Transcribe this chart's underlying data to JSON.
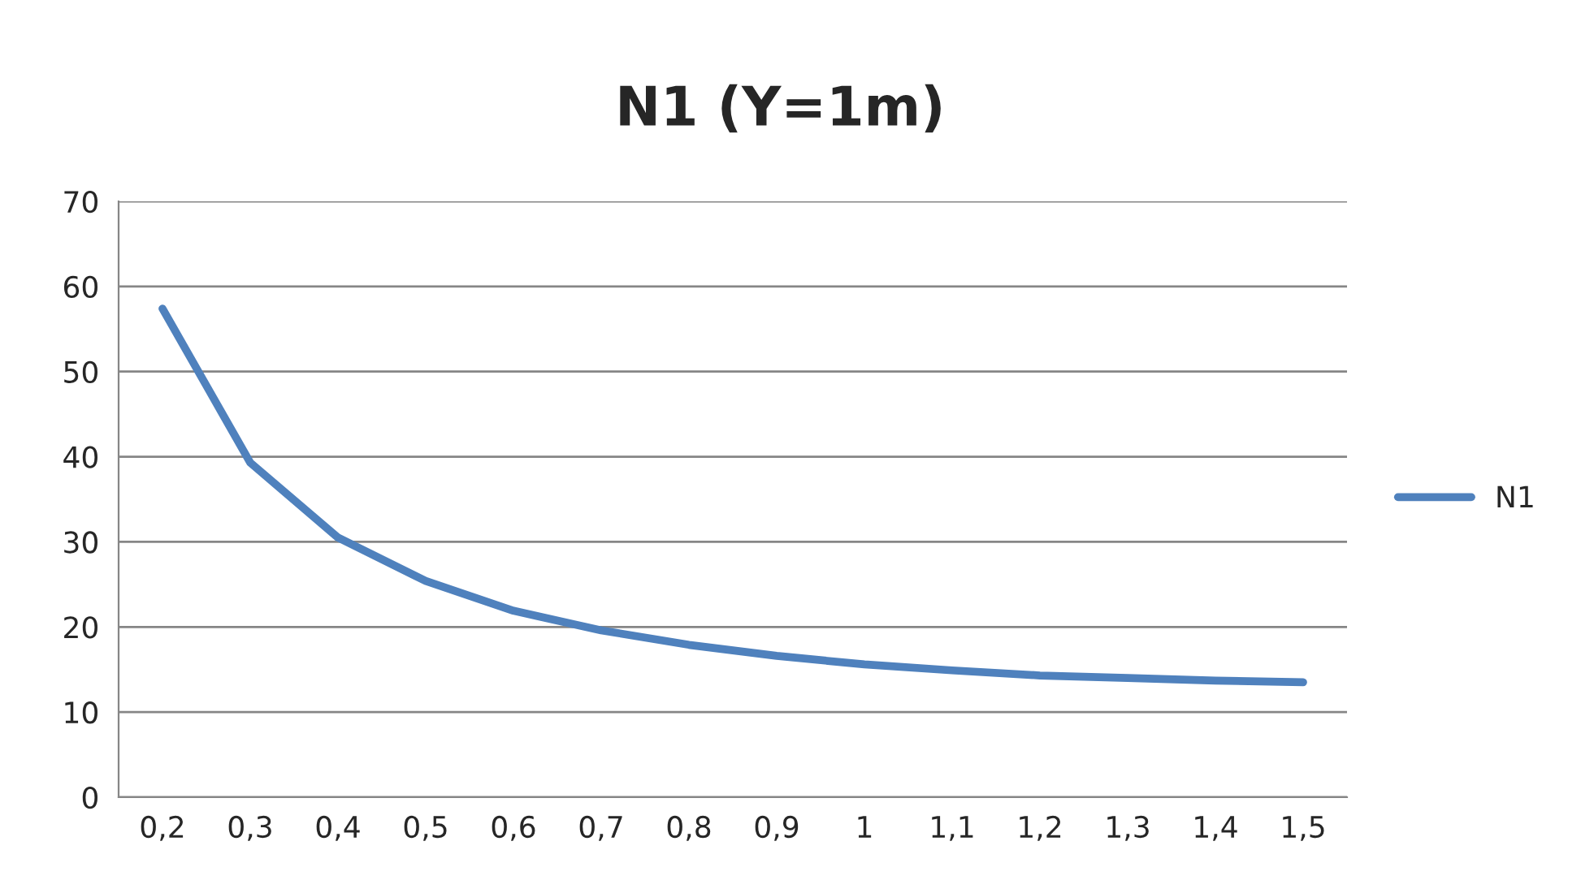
{
  "chart_data": {
    "type": "line",
    "title": "N1 (Y=1m)",
    "categories": [
      "0,2",
      "0,3",
      "0,4",
      "0,5",
      "0,6",
      "0,7",
      "0,8",
      "0,9",
      "1",
      "1,1",
      "1,2",
      "1,3",
      "1,4",
      "1,5"
    ],
    "series": [
      {
        "name": "N1",
        "color": "#4f81bd",
        "values": [
          57.4,
          39.3,
          30.5,
          25.4,
          21.9,
          19.6,
          17.9,
          16.6,
          15.6,
          14.9,
          14.3,
          14.0,
          13.7,
          13.5
        ]
      }
    ],
    "ylim": [
      0,
      70
    ],
    "yticks": [
      0,
      10,
      20,
      30,
      40,
      50,
      60,
      70
    ],
    "grid": "y",
    "legend": "right",
    "marker": "none",
    "line_style": "solid"
  }
}
